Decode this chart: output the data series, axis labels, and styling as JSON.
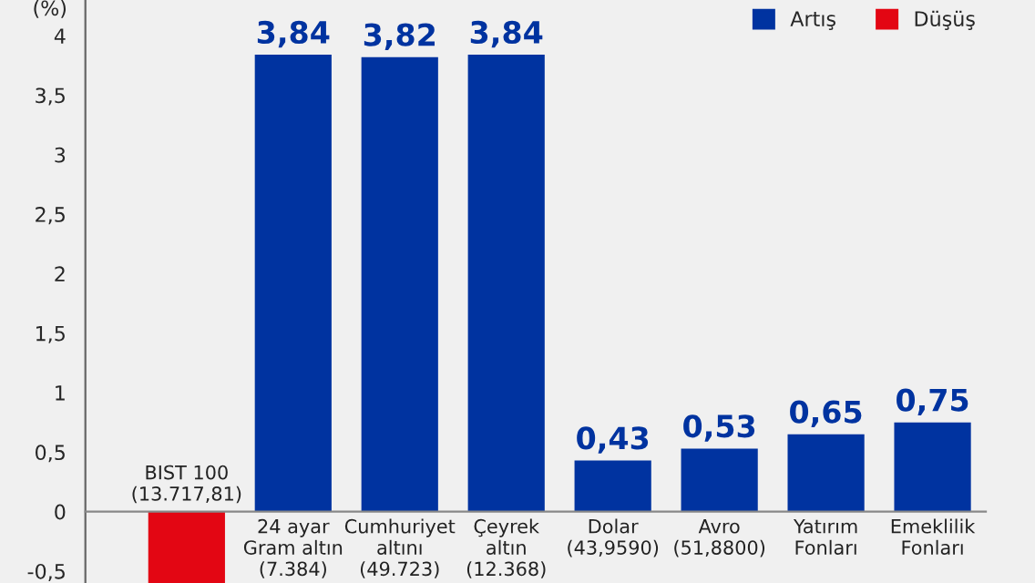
{
  "chart_data": {
    "type": "bar",
    "stacked": true,
    "categories": [
      "BIST 100\n(13.717,81)",
      "24 ayar\nGram altın\n(7.384)",
      "Cumhuriyet\naltını\n(49.723)",
      "Çeyrek\naltın\n(12.368)",
      "Dolar\n(43,9590)",
      "Avro\n(51,8800)",
      "Yatırım\nFonları",
      "Emeklilik\nFonları"
    ],
    "series": [
      {
        "name": "Artış",
        "color": "#0033a0",
        "values": [
          null,
          3.84,
          3.82,
          3.84,
          0.43,
          0.53,
          0.65,
          0.75
        ],
        "value_labels": [
          null,
          "3,84",
          "3,82",
          "3,84",
          "0,43",
          "0,53",
          "0,65",
          "0,75"
        ]
      },
      {
        "name": "Düşüş",
        "color": "#e30613",
        "values": [
          -0.6,
          null,
          null,
          null,
          null,
          null,
          null,
          null
        ]
      }
    ],
    "ylabel": "(%)",
    "ylim": [
      -0.6,
      4.3
    ],
    "yticks": [
      {
        "value": -0.5,
        "label": "-0,5"
      },
      0,
      {
        "value": 0.5,
        "label": "0,5"
      },
      1,
      {
        "value": 1.5,
        "label": "1,5"
      },
      2,
      {
        "value": 2.5,
        "label": "2,5"
      },
      3,
      {
        "value": 3.5,
        "label": "3,5"
      },
      4
    ],
    "grid": false,
    "legend": "top right"
  }
}
